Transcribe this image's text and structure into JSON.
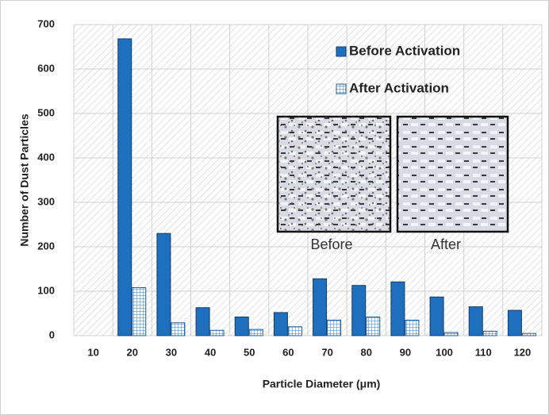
{
  "chart_data": {
    "type": "bar",
    "x_label": "Particle Diameter (μm)",
    "y_label": "Number of  Dust Particles",
    "categories": [
      "10",
      "20",
      "30",
      "40",
      "50",
      "60",
      "70",
      "80",
      "90",
      "100",
      "110",
      "120"
    ],
    "series": [
      {
        "name": "Before Activation",
        "color": "#1f6fbf",
        "values": [
          0,
          668,
          230,
          63,
          42,
          52,
          128,
          113,
          121,
          87,
          65,
          57
        ]
      },
      {
        "name": "After Activation",
        "color": "#2b7fd0",
        "values": [
          0,
          108,
          29,
          12,
          14,
          20,
          35,
          42,
          35,
          7,
          10,
          5
        ]
      }
    ],
    "ylim": [
      0,
      700
    ],
    "yticks": [
      0,
      100,
      200,
      300,
      400,
      500,
      600,
      700
    ],
    "grid": true,
    "annotations": [
      "Before",
      "After"
    ]
  }
}
